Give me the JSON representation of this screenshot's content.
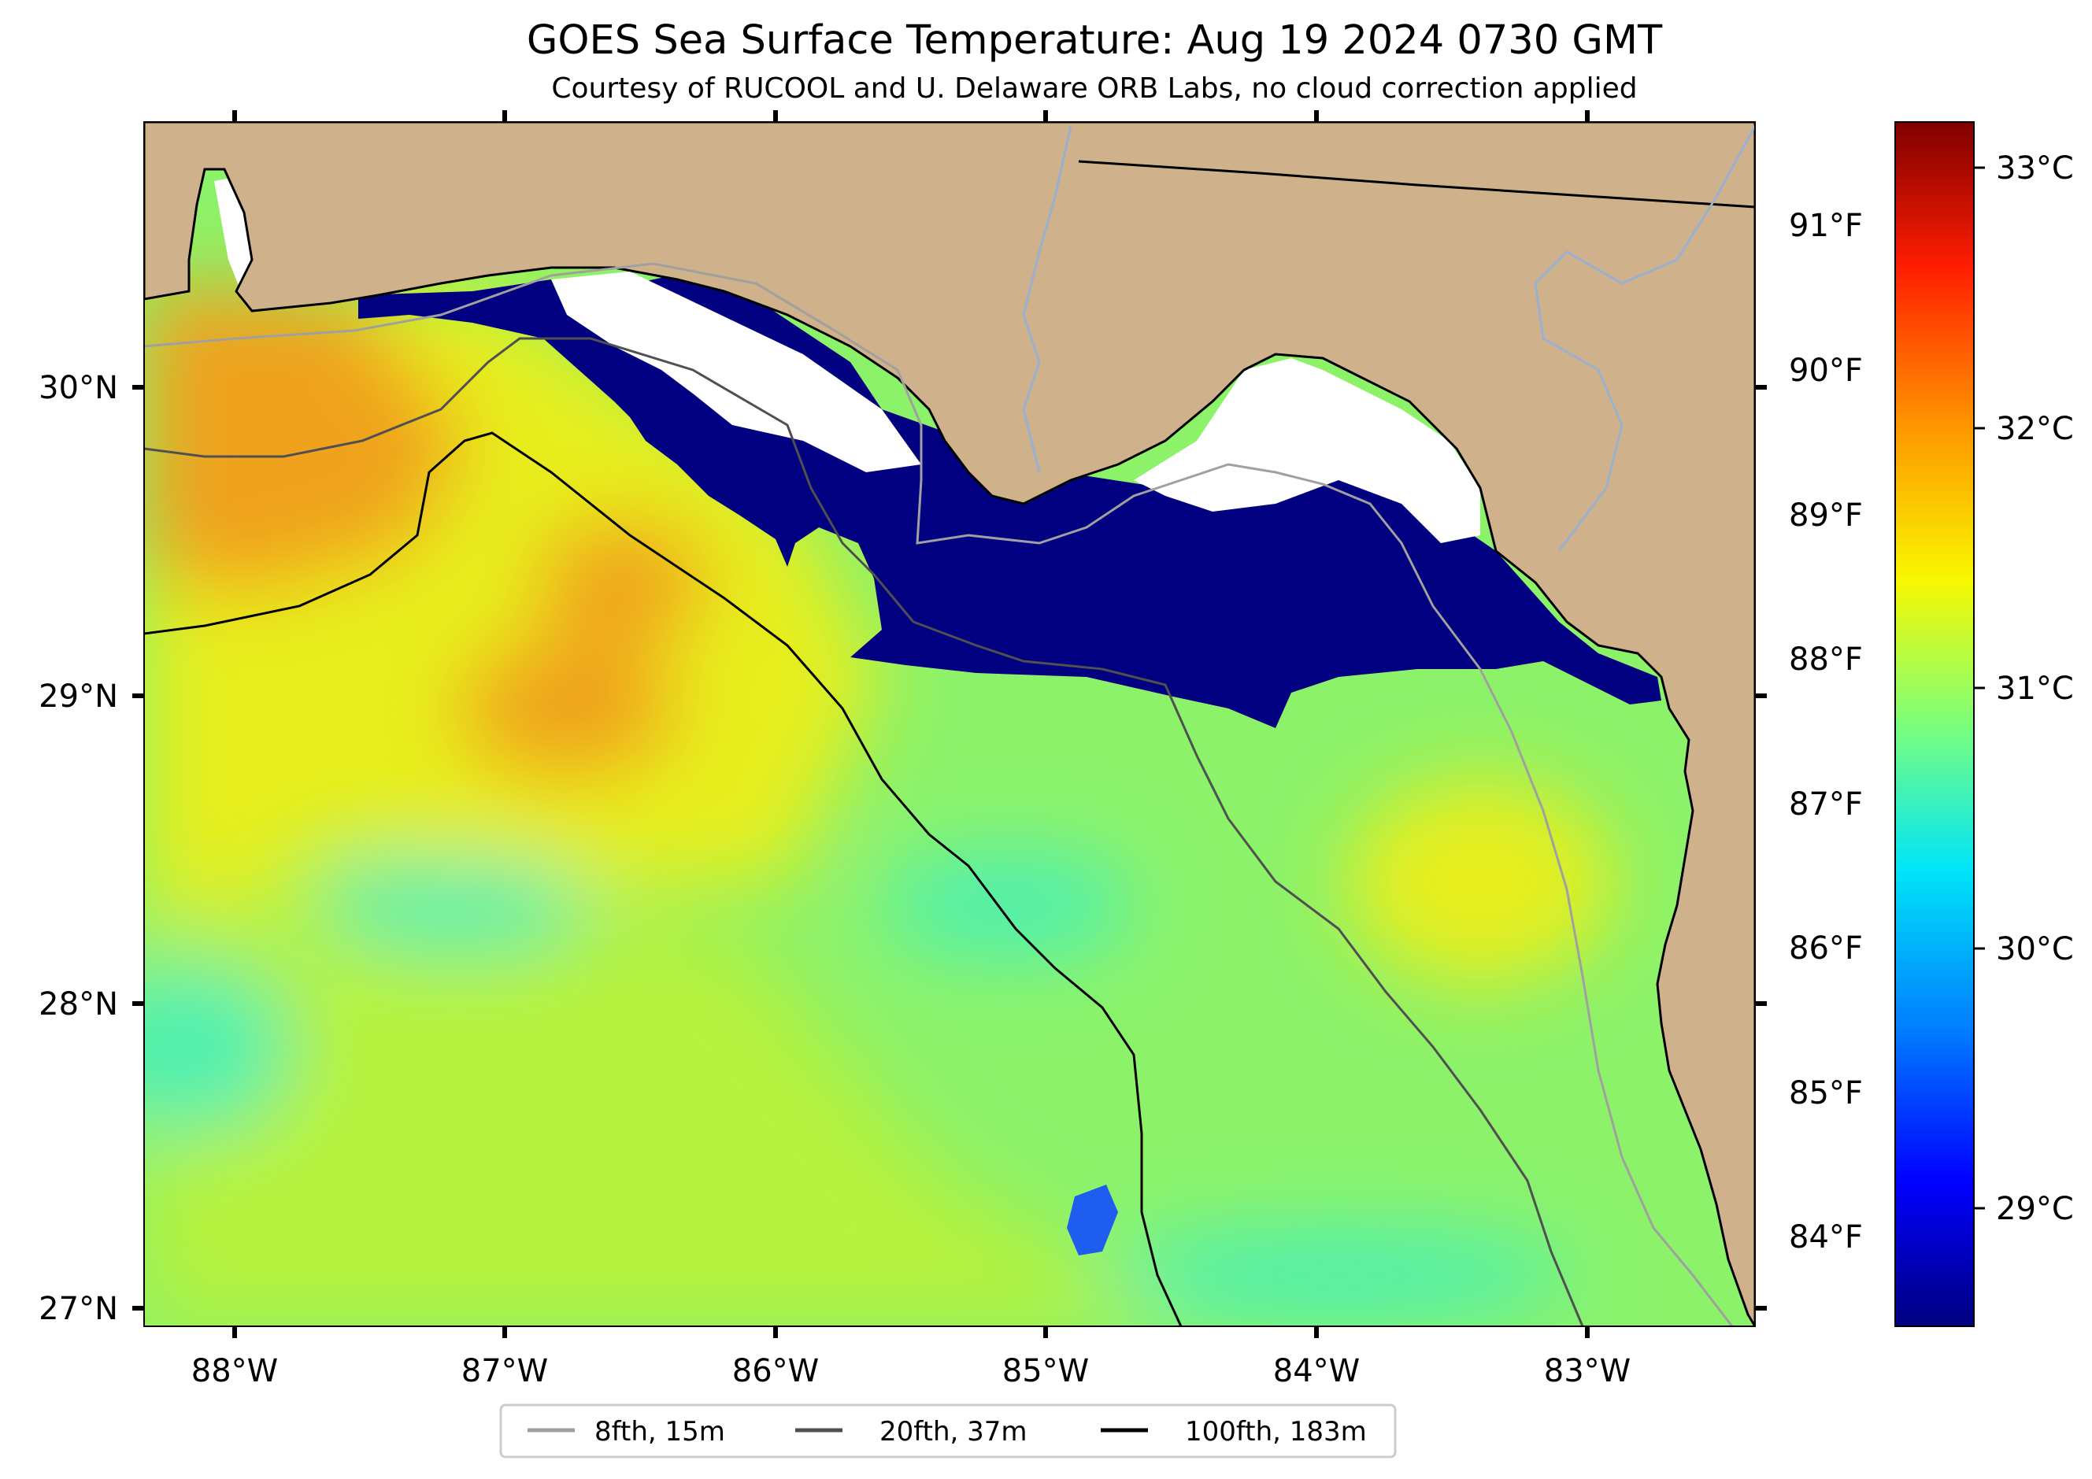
{
  "header": {
    "title": "GOES Sea Surface Temperature: Aug 19 2024 0730 GMT",
    "subtitle": "Courtesy of RUCOOL and U. Delaware ORB Labs, no cloud correction applied"
  },
  "map": {
    "lon_labels": [
      "88°W",
      "87°W",
      "86°W",
      "85°W",
      "84°W",
      "83°W"
    ],
    "lat_labels": [
      "30°N",
      "29°N",
      "28°N",
      "27°N"
    ],
    "land_color": "#cfb28b",
    "ocean_colors": {
      "warm_orange": "#f0a21d",
      "yellow": "#e7ee1a",
      "yellow_green": "#b6f23c",
      "green": "#8cf26a",
      "cyan_green": "#4ff0b0",
      "cold_navy": "#000080",
      "cloud_white": "#ffffff"
    }
  },
  "colorbar": {
    "colors": [
      "#00007f",
      "#0000ff",
      "#0080ff",
      "#00e5f8",
      "#7dff7a",
      "#f8f800",
      "#ff9400",
      "#ff1d00",
      "#7f0000"
    ],
    "celsius_labels": [
      "33°C",
      "32°C",
      "31°C",
      "30°C",
      "29°C"
    ],
    "fahrenheit_labels": [
      "91°F",
      "90°F",
      "89°F",
      "88°F",
      "87°F",
      "86°F",
      "85°F",
      "84°F"
    ]
  },
  "legend": {
    "items": [
      {
        "label": "8fth, 15m",
        "color": "#a0a0a0"
      },
      {
        "label": "20fth, 37m",
        "color": "#505050"
      },
      {
        "label": "100fth, 183m",
        "color": "#000000"
      }
    ]
  }
}
